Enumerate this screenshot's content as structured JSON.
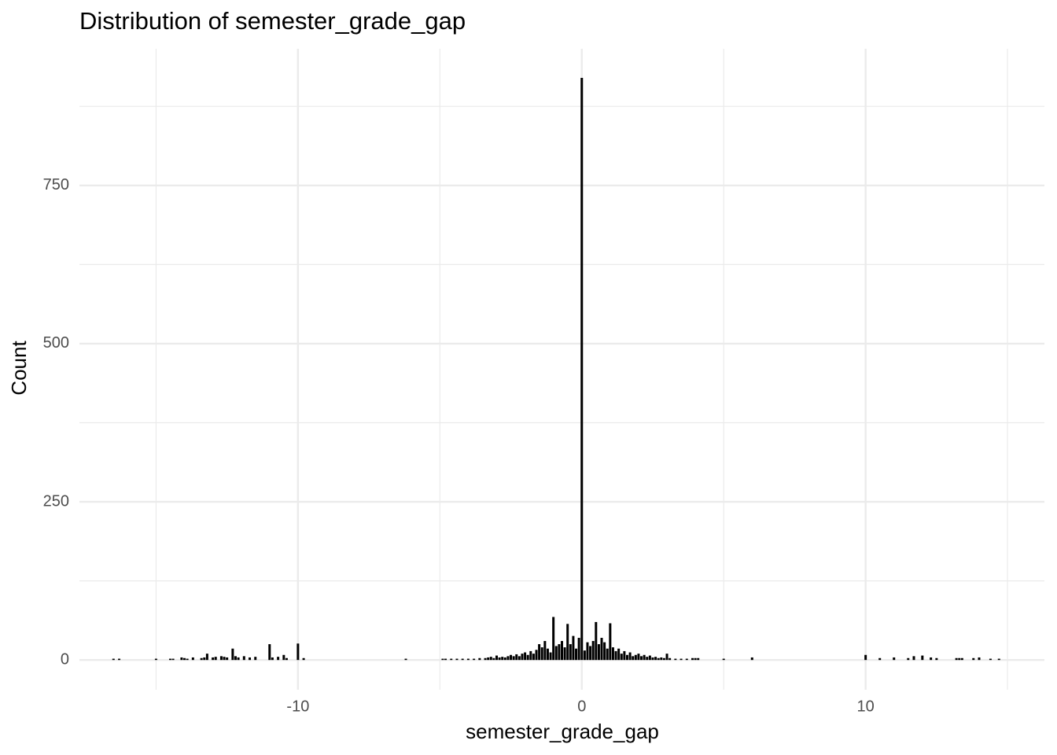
{
  "chart_data": {
    "type": "bar",
    "title": "Distribution of semester_grade_gap",
    "x_label": "semester_grade_gap",
    "y_label": "Count",
    "color": "#000000",
    "grid": true,
    "xlim": [
      -17.7,
      16.3
    ],
    "ylim": [
      -47,
      966
    ],
    "xticks": [
      -10,
      0,
      10
    ],
    "yticks": [
      0,
      250,
      500,
      750
    ],
    "xminor": [
      -15,
      -5,
      5,
      15
    ],
    "yminor": [
      125,
      375,
      625,
      875
    ],
    "x": [
      -16.5,
      -16.3,
      -15.0,
      -14.5,
      -14.4,
      -14.1,
      -14.0,
      -13.9,
      -13.7,
      -13.4,
      -13.3,
      -13.2,
      -13.0,
      -12.9,
      -12.7,
      -12.6,
      -12.5,
      -12.3,
      -12.2,
      -12.1,
      -11.9,
      -11.7,
      -11.5,
      -11.0,
      -10.9,
      -10.7,
      -10.5,
      -10.4,
      -10.0,
      -9.8,
      -6.2,
      -4.9,
      -4.8,
      -4.6,
      -4.4,
      -4.2,
      -4.0,
      -3.8,
      -3.6,
      -3.4,
      -3.3,
      -3.2,
      -3.1,
      -3.0,
      -2.9,
      -2.8,
      -2.7,
      -2.6,
      -2.5,
      -2.4,
      -2.3,
      -2.2,
      -2.1,
      -2.0,
      -1.9,
      -1.8,
      -1.7,
      -1.6,
      -1.5,
      -1.4,
      -1.3,
      -1.2,
      -1.1,
      -1.0,
      -0.9,
      -0.8,
      -0.7,
      -0.6,
      -0.5,
      -0.4,
      -0.3,
      -0.2,
      -0.1,
      0,
      0.1,
      0.2,
      0.3,
      0.4,
      0.5,
      0.6,
      0.7,
      0.8,
      0.9,
      1.0,
      1.1,
      1.2,
      1.3,
      1.4,
      1.5,
      1.6,
      1.7,
      1.8,
      1.9,
      2.0,
      2.1,
      2.2,
      2.3,
      2.4,
      2.5,
      2.6,
      2.7,
      2.8,
      2.9,
      3.0,
      3.1,
      3.3,
      3.5,
      3.7,
      3.9,
      4.0,
      4.1,
      5.0,
      6.0,
      10.0,
      10.5,
      11.0,
      11.5,
      11.7,
      12.0,
      12.3,
      12.5,
      13.2,
      13.3,
      13.4,
      13.8,
      14.0,
      14.4,
      14.7
    ],
    "values": [
      2,
      2,
      2,
      2,
      2,
      4,
      3,
      2,
      4,
      3,
      4,
      10,
      4,
      5,
      6,
      5,
      4,
      18,
      6,
      4,
      6,
      4,
      5,
      25,
      4,
      5,
      8,
      3,
      26,
      3,
      2,
      2,
      2,
      2,
      2,
      2,
      2,
      2,
      3,
      3,
      4,
      5,
      3,
      7,
      4,
      5,
      4,
      6,
      8,
      6,
      9,
      6,
      10,
      12,
      8,
      14,
      10,
      16,
      25,
      20,
      30,
      18,
      12,
      68,
      22,
      25,
      30,
      20,
      57,
      25,
      38,
      18,
      35,
      920,
      15,
      28,
      22,
      30,
      60,
      25,
      35,
      28,
      18,
      58,
      20,
      14,
      18,
      10,
      14,
      8,
      12,
      6,
      8,
      10,
      6,
      8,
      5,
      7,
      4,
      5,
      3,
      4,
      3,
      10,
      3,
      2,
      2,
      2,
      3,
      3,
      3,
      2,
      4,
      8,
      3,
      4,
      3,
      6,
      7,
      4,
      3,
      3,
      3,
      3,
      3,
      4,
      2,
      2
    ]
  }
}
